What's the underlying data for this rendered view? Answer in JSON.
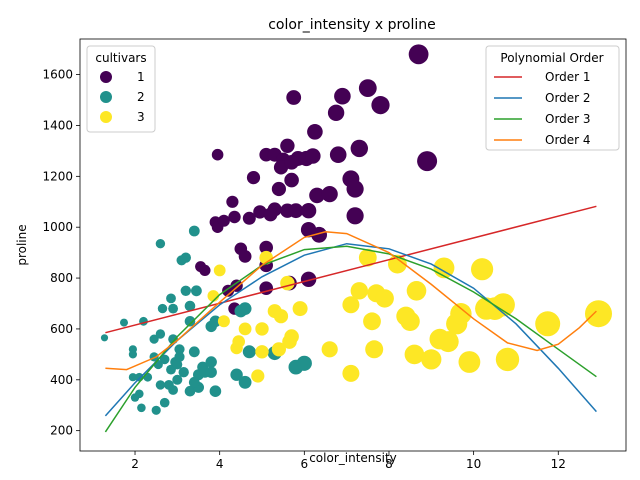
{
  "chart_data": {
    "type": "scatter",
    "title": "color_intensity x proline",
    "xlabel": "color_intensity",
    "ylabel": "proline",
    "xlim": [
      0.7,
      13.6
    ],
    "ylim": [
      120,
      1740
    ],
    "xticks": [
      2,
      4,
      6,
      8,
      10,
      12
    ],
    "yticks": [
      200,
      400,
      600,
      800,
      1000,
      1200,
      1400,
      1600
    ],
    "grid": false,
    "legend_cultivars": {
      "title": "cultivars",
      "position": "top-left",
      "entries": [
        {
          "label": "1",
          "color": "#440154"
        },
        {
          "label": "2",
          "color": "#21918c"
        },
        {
          "label": "3",
          "color": "#fde725"
        }
      ]
    },
    "legend_fits": {
      "title": "Polynomial Order",
      "position": "top-right",
      "entries": [
        {
          "label": "Order 1",
          "color": "#d62728"
        },
        {
          "label": "Order 2",
          "color": "#1f77b4"
        },
        {
          "label": "Order 3",
          "color": "#2ca02c"
        },
        {
          "label": "Order 4",
          "color": "#ff7f0e"
        }
      ]
    },
    "fits": [
      {
        "color": "#d62728",
        "x": [
          1.3,
          12.9
        ],
        "y": [
          585,
          1082
        ]
      },
      {
        "color": "#1f77b4",
        "x": [
          1.3,
          2,
          3,
          4,
          5,
          6,
          7,
          8,
          9,
          10,
          11,
          12,
          12.9
        ],
        "y": [
          258,
          388,
          555,
          695,
          805,
          890,
          935,
          915,
          855,
          760,
          620,
          445,
          275
        ]
      },
      {
        "color": "#2ca02c",
        "x": [
          1.3,
          2,
          3,
          4,
          5,
          6,
          7,
          8,
          9,
          10,
          11,
          12,
          12.9
        ],
        "y": [
          195,
          370,
          570,
          735,
          850,
          912,
          925,
          895,
          835,
          745,
          640,
          520,
          412
        ]
      },
      {
        "color": "#ff7f0e",
        "x": [
          1.3,
          1.8,
          2.5,
          3,
          4,
          5,
          6,
          6.5,
          7,
          8,
          9,
          10,
          10.8,
          11.5,
          12,
          12.5,
          12.9
        ],
        "y": [
          445,
          440,
          490,
          555,
          705,
          850,
          960,
          982,
          975,
          900,
          775,
          640,
          545,
          515,
          540,
          605,
          670
        ]
      }
    ],
    "series": [
      {
        "name": "1",
        "color": "#440154",
        "points": [
          [
            3.95,
            1285
          ],
          [
            8.7,
            1680
          ],
          [
            7.5,
            1547
          ],
          [
            5.75,
            1510
          ],
          [
            6.9,
            1515
          ],
          [
            7.8,
            1480
          ],
          [
            6.75,
            1450
          ],
          [
            6.25,
            1375
          ],
          [
            7.3,
            1310
          ],
          [
            5.6,
            1320
          ],
          [
            5.1,
            1285
          ],
          [
            5.3,
            1285
          ],
          [
            5.85,
            1270
          ],
          [
            6.05,
            1270
          ],
          [
            6.2,
            1280
          ],
          [
            6.8,
            1285
          ],
          [
            5.5,
            1265
          ],
          [
            5.45,
            1235
          ],
          [
            5.7,
            1255
          ],
          [
            8.9,
            1260
          ],
          [
            4.8,
            1195
          ],
          [
            5.7,
            1185
          ],
          [
            7.1,
            1190
          ],
          [
            7.2,
            1150
          ],
          [
            5.4,
            1150
          ],
          [
            6.3,
            1125
          ],
          [
            4.3,
            1100
          ],
          [
            5.3,
            1070
          ],
          [
            5.6,
            1065
          ],
          [
            5.8,
            1065
          ],
          [
            6.1,
            1065
          ],
          [
            4.35,
            1040
          ],
          [
            4.7,
            1035
          ],
          [
            4.95,
            1060
          ],
          [
            5.2,
            1050
          ],
          [
            7.2,
            1045
          ],
          [
            3.9,
            1020
          ],
          [
            3.95,
            1000
          ],
          [
            4.1,
            1025
          ],
          [
            6.1,
            990
          ],
          [
            6.35,
            970
          ],
          [
            4.5,
            915
          ],
          [
            4.6,
            885
          ],
          [
            5.1,
            920
          ],
          [
            5.1,
            850
          ],
          [
            3.55,
            845
          ],
          [
            3.65,
            830
          ],
          [
            4.2,
            750
          ],
          [
            4.4,
            770
          ],
          [
            4.35,
            680
          ],
          [
            5.1,
            760
          ],
          [
            5.65,
            780
          ],
          [
            6.1,
            795
          ],
          [
            6.6,
            1130
          ]
        ]
      },
      {
        "name": "2",
        "color": "#21918c",
        "points": [
          [
            1.28,
            565
          ],
          [
            1.74,
            625
          ],
          [
            1.95,
            520
          ],
          [
            1.95,
            500
          ],
          [
            1.95,
            410
          ],
          [
            2.1,
            410
          ],
          [
            2.1,
            345
          ],
          [
            2.15,
            290
          ],
          [
            2.0,
            330
          ],
          [
            2.2,
            630
          ],
          [
            2.3,
            410
          ],
          [
            2.45,
            560
          ],
          [
            2.45,
            490
          ],
          [
            2.5,
            280
          ],
          [
            2.55,
            460
          ],
          [
            2.6,
            935
          ],
          [
            2.6,
            580
          ],
          [
            2.65,
            680
          ],
          [
            2.6,
            380
          ],
          [
            2.7,
            310
          ],
          [
            2.8,
            380
          ],
          [
            2.85,
            440
          ],
          [
            2.85,
            720
          ],
          [
            2.9,
            680
          ],
          [
            2.9,
            560
          ],
          [
            2.95,
            470
          ],
          [
            3.0,
            460
          ],
          [
            3.05,
            520
          ],
          [
            3.05,
            490
          ],
          [
            3.1,
            870
          ],
          [
            3.15,
            430
          ],
          [
            3.2,
            750
          ],
          [
            3.2,
            880
          ],
          [
            3.3,
            690
          ],
          [
            3.3,
            630
          ],
          [
            3.4,
            510
          ],
          [
            3.4,
            985
          ],
          [
            3.45,
            750
          ],
          [
            3.5,
            420
          ],
          [
            3.6,
            450
          ],
          [
            3.65,
            430
          ],
          [
            3.8,
            470
          ],
          [
            3.8,
            430
          ],
          [
            3.8,
            610
          ],
          [
            3.9,
            355
          ],
          [
            3.9,
            630
          ],
          [
            4.4,
            420
          ],
          [
            4.5,
            670
          ],
          [
            4.6,
            680
          ],
          [
            4.6,
            390
          ],
          [
            4.7,
            510
          ],
          [
            5.3,
            505
          ],
          [
            5.8,
            450
          ],
          [
            6.0,
            465
          ],
          [
            2.9,
            360
          ],
          [
            3.3,
            355
          ],
          [
            3.5,
            370
          ],
          [
            3.0,
            400
          ],
          [
            3.4,
            390
          ],
          [
            2.7,
            480
          ]
        ]
      },
      {
        "name": "3",
        "color": "#fde725",
        "points": [
          [
            3.85,
            730
          ],
          [
            4.0,
            830
          ],
          [
            4.1,
            630
          ],
          [
            4.4,
            525
          ],
          [
            4.45,
            550
          ],
          [
            4.6,
            600
          ],
          [
            4.9,
            415
          ],
          [
            5.0,
            600
          ],
          [
            5.0,
            510
          ],
          [
            5.1,
            880
          ],
          [
            5.3,
            670
          ],
          [
            5.4,
            520
          ],
          [
            5.45,
            650
          ],
          [
            5.6,
            780
          ],
          [
            5.65,
            550
          ],
          [
            5.7,
            570
          ],
          [
            5.9,
            680
          ],
          [
            6.6,
            520
          ],
          [
            7.1,
            695
          ],
          [
            7.1,
            425
          ],
          [
            7.3,
            750
          ],
          [
            7.5,
            880
          ],
          [
            7.6,
            630
          ],
          [
            7.65,
            520
          ],
          [
            7.7,
            740
          ],
          [
            7.9,
            720
          ],
          [
            8.2,
            855
          ],
          [
            8.4,
            650
          ],
          [
            8.5,
            630
          ],
          [
            8.6,
            500
          ],
          [
            8.65,
            750
          ],
          [
            9.0,
            480
          ],
          [
            9.2,
            560
          ],
          [
            9.3,
            840
          ],
          [
            9.4,
            550
          ],
          [
            9.6,
            620
          ],
          [
            9.7,
            660
          ],
          [
            9.9,
            470
          ],
          [
            10.2,
            835
          ],
          [
            10.3,
            680
          ],
          [
            10.5,
            680
          ],
          [
            10.7,
            695
          ],
          [
            10.8,
            480
          ],
          [
            11.75,
            620
          ],
          [
            12.95,
            660
          ]
        ]
      }
    ]
  }
}
